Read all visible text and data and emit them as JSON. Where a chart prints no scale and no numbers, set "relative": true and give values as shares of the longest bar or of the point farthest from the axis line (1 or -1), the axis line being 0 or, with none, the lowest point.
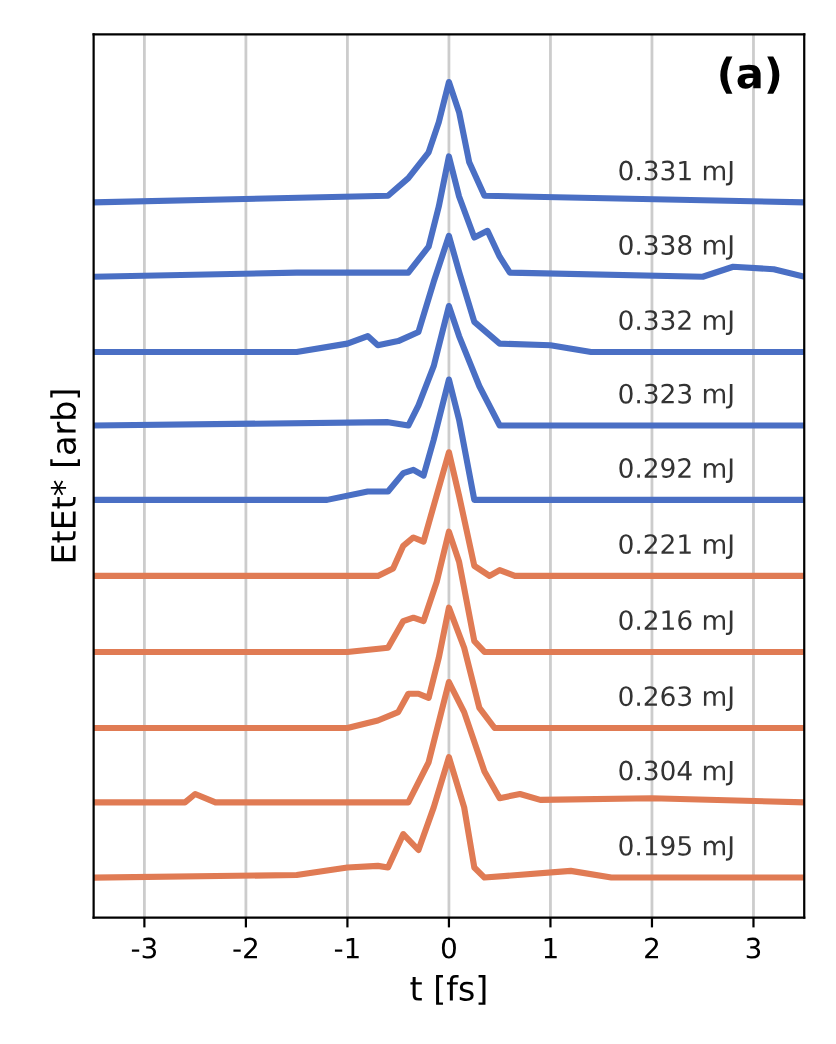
{
  "chart_data": {
    "type": "line",
    "relative": true,
    "xlabel": "t [fs]",
    "ylabel": "EtEt* [arb]",
    "annotations": [
      "(a)"
    ],
    "xlim": [
      -3.5,
      3.5
    ],
    "xticks": [
      -3,
      -2,
      -1,
      0,
      1,
      2,
      3
    ],
    "grid": "x",
    "legend": false,
    "tick_labels": "x",
    "line_style": "solid",
    "marker": "none",
    "series": [
      {
        "name": "0.331 mJ",
        "color": "#4a6fc4",
        "x": [
          -3.5,
          -0.6,
          -0.4,
          -0.2,
          -0.1,
          0,
          0.1,
          0.2,
          0.35,
          3.5
        ],
        "values": [
          0.856,
          0.864,
          0.885,
          0.916,
          0.952,
          1.0,
          0.964,
          0.904,
          0.864,
          0.856
        ]
      },
      {
        "name": "0.338 mJ",
        "color": "#4a6fc4",
        "x": [
          -3.5,
          -1.5,
          -0.4,
          -0.2,
          -0.1,
          0,
          0.1,
          0.25,
          0.38,
          0.5,
          0.6,
          2.5,
          2.8,
          3.2,
          3.5
        ],
        "values": [
          0.767,
          0.772,
          0.772,
          0.803,
          0.851,
          0.911,
          0.863,
          0.814,
          0.822,
          0.791,
          0.772,
          0.767,
          0.779,
          0.776,
          0.767
        ]
      },
      {
        "name": "0.332 mJ",
        "color": "#4a6fc4",
        "x": [
          -3.5,
          -1.5,
          -1.0,
          -0.8,
          -0.7,
          -0.5,
          -0.3,
          -0.15,
          0,
          0.1,
          0.25,
          0.5,
          1.0,
          1.4,
          3.5
        ],
        "values": [
          0.677,
          0.677,
          0.687,
          0.696,
          0.685,
          0.69,
          0.701,
          0.761,
          0.816,
          0.773,
          0.713,
          0.687,
          0.685,
          0.677,
          0.677
        ]
      },
      {
        "name": "0.323 mJ",
        "color": "#4a6fc4",
        "x": [
          -3.5,
          -0.6,
          -0.4,
          -0.3,
          -0.15,
          0,
          0.1,
          0.3,
          0.5,
          3.5
        ],
        "values": [
          0.589,
          0.593,
          0.589,
          0.613,
          0.66,
          0.732,
          0.696,
          0.636,
          0.589,
          0.589
        ]
      },
      {
        "name": "0.292 mJ",
        "color": "#4a6fc4",
        "x": [
          -3.5,
          -1.2,
          -0.8,
          -0.6,
          -0.45,
          -0.35,
          -0.25,
          -0.15,
          0,
          0.1,
          0.25,
          3.5
        ],
        "values": [
          0.5,
          0.5,
          0.51,
          0.51,
          0.532,
          0.536,
          0.529,
          0.572,
          0.644,
          0.596,
          0.5,
          0.5
        ]
      },
      {
        "name": "0.221 mJ",
        "color": "#e07b54",
        "x": [
          -3.5,
          -0.7,
          -0.55,
          -0.45,
          -0.35,
          -0.25,
          -0.15,
          0,
          0.1,
          0.25,
          0.4,
          0.5,
          0.65,
          3.5
        ],
        "values": [
          0.409,
          0.409,
          0.418,
          0.445,
          0.455,
          0.45,
          0.493,
          0.557,
          0.505,
          0.421,
          0.409,
          0.416,
          0.409,
          0.409
        ]
      },
      {
        "name": "0.216 mJ",
        "color": "#e07b54",
        "x": [
          -3.5,
          -1.0,
          -0.6,
          -0.45,
          -0.35,
          -0.25,
          -0.12,
          0,
          0.1,
          0.25,
          0.35,
          3.5
        ],
        "values": [
          0.318,
          0.318,
          0.323,
          0.355,
          0.359,
          0.355,
          0.402,
          0.462,
          0.426,
          0.331,
          0.318,
          0.318
        ]
      },
      {
        "name": "0.263 mJ",
        "color": "#e07b54",
        "x": [
          -3.5,
          -1.0,
          -0.7,
          -0.5,
          -0.4,
          -0.3,
          -0.2,
          -0.1,
          0,
          0.15,
          0.3,
          0.45,
          3.5
        ],
        "values": [
          0.227,
          0.227,
          0.236,
          0.246,
          0.268,
          0.268,
          0.263,
          0.311,
          0.371,
          0.323,
          0.251,
          0.227,
          0.227
        ]
      },
      {
        "name": "0.304 mJ",
        "color": "#e07b54",
        "x": [
          -3.5,
          -2.6,
          -2.5,
          -2.3,
          -0.4,
          -0.2,
          0,
          0.15,
          0.35,
          0.5,
          0.7,
          0.9,
          2.0,
          3.5
        ],
        "values": [
          0.138,
          0.138,
          0.148,
          0.138,
          0.138,
          0.186,
          0.282,
          0.246,
          0.175,
          0.143,
          0.148,
          0.141,
          0.143,
          0.138
        ]
      },
      {
        "name": "0.195 mJ",
        "color": "#e07b54",
        "x": [
          -3.5,
          -1.5,
          -1.0,
          -0.7,
          -0.6,
          -0.45,
          -0.3,
          -0.15,
          0,
          0.15,
          0.25,
          0.35,
          1.2,
          1.6,
          3.5
        ],
        "values": [
          0.048,
          0.051,
          0.06,
          0.062,
          0.06,
          0.1,
          0.081,
          0.132,
          0.192,
          0.132,
          0.06,
          0.048,
          0.056,
          0.048,
          0.048
        ]
      }
    ]
  }
}
